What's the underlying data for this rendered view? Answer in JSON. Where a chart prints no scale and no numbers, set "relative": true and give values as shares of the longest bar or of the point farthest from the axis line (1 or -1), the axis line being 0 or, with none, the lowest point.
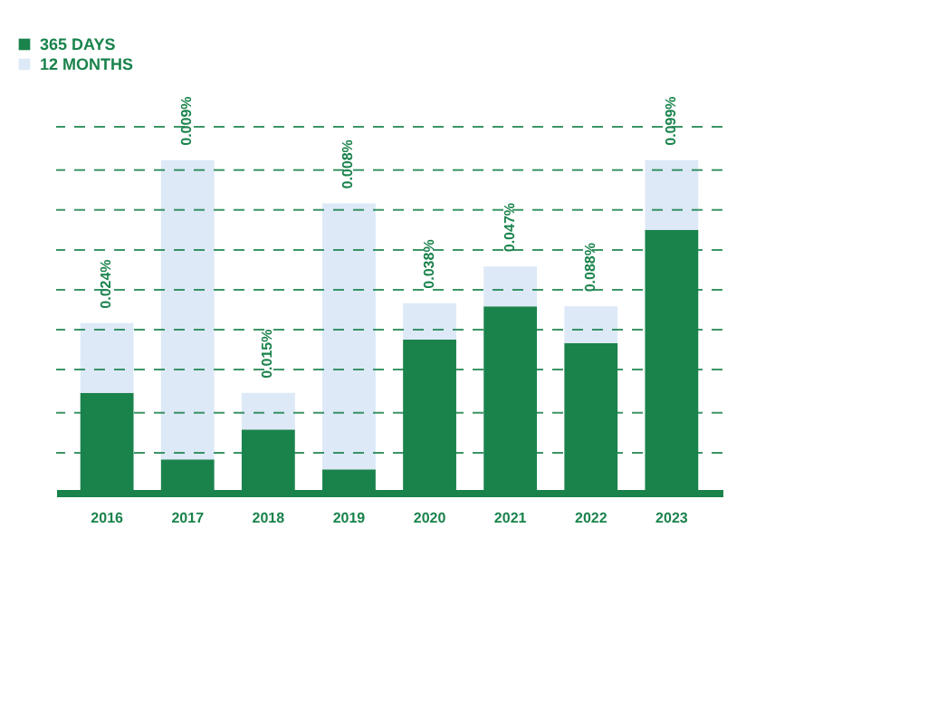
{
  "chart_data": {
    "type": "bar",
    "relative": true,
    "stacked": true,
    "categories": [
      "2016",
      "2017",
      "2018",
      "2019",
      "2020",
      "2021",
      "2022",
      "2023"
    ],
    "series": [
      {
        "name": "365 DAYS",
        "color": "#1a834c",
        "values": [
          0.3,
          0.1,
          0.19,
          0.07,
          0.46,
          0.56,
          0.45,
          0.79
        ]
      },
      {
        "name": "12 MONTHS",
        "color": "#dde9f7",
        "values": [
          0.21,
          0.9,
          0.11,
          0.8,
          0.11,
          0.12,
          0.11,
          0.21
        ]
      }
    ],
    "annotations": [
      {
        "text": "0.024%",
        "x": "2016",
        "y": 0.51
      },
      {
        "text": "0.009%",
        "x": "2017",
        "y": 1.0
      },
      {
        "text": "0.015%",
        "x": "2018",
        "y": 0.3
      },
      {
        "text": "0.008%",
        "x": "2019",
        "y": 0.87
      },
      {
        "text": "0.038%",
        "x": "2020",
        "y": 0.57
      },
      {
        "text": "0.047%",
        "x": "2021",
        "y": 0.68
      },
      {
        "text": "0.088%",
        "x": "2022",
        "y": 0.56
      },
      {
        "text": "0.099%",
        "x": "2023",
        "y": 1.0
      }
    ],
    "ref_lines": [
      {
        "axis": "y",
        "value": 0.12,
        "color": "#1a834c",
        "line_style": "dashed"
      },
      {
        "axis": "y",
        "value": 0.24,
        "color": "#1a834c",
        "line_style": "dashed"
      },
      {
        "axis": "y",
        "value": 0.37,
        "color": "#1a834c",
        "line_style": "dashed"
      },
      {
        "axis": "y",
        "value": 0.49,
        "color": "#1a834c",
        "line_style": "dashed"
      },
      {
        "axis": "y",
        "value": 0.61,
        "color": "#1a834c",
        "line_style": "dashed"
      },
      {
        "axis": "y",
        "value": 0.73,
        "color": "#1a834c",
        "line_style": "dashed"
      },
      {
        "axis": "y",
        "value": 0.85,
        "color": "#1a834c",
        "line_style": "dashed"
      },
      {
        "axis": "y",
        "value": 0.97,
        "color": "#1a834c",
        "line_style": "dashed"
      },
      {
        "axis": "y",
        "value": 1.1,
        "color": "#1a834c",
        "line_style": "dashed"
      }
    ],
    "legend": "top left"
  }
}
